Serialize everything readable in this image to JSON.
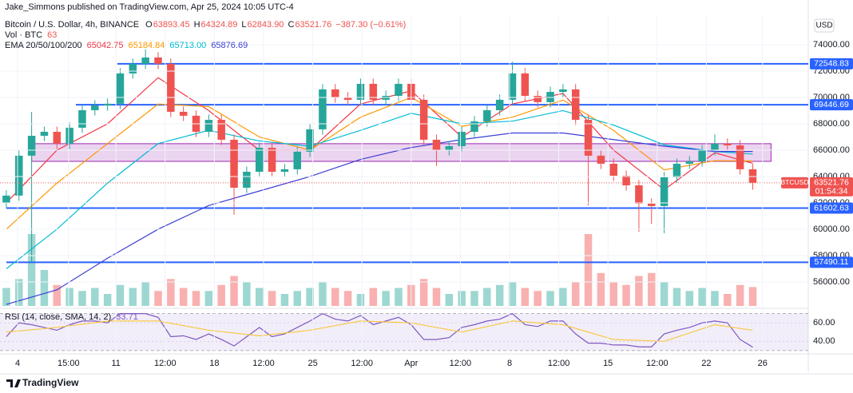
{
  "header": {
    "publisher": "Jake_Simmons published on TradingView.com, Apr 25, 2024 10:05 UTC-4"
  },
  "footer": {
    "brand": "TradingView"
  },
  "chart_data": [
    {
      "type": "candlestick",
      "title": "Bitcoin / U.S. Dollar, 4h, BINANCE",
      "currency": "USD",
      "up_color": "#26a69a",
      "down_color": "#ef5350",
      "ohlc_legend": {
        "keys": [
          "O",
          "H",
          "L",
          "C"
        ],
        "values": [
          63893.45,
          64324.89,
          {
            "value": 62843.9,
            "label": "62843.90"
          },
          63521.76
        ],
        "change": "−387.30 (−0.61%)"
      },
      "x": [
        -0.8,
        0.1,
        1.0,
        1.9,
        2.8,
        3.7,
        4.6,
        5.5,
        6.4,
        7.3,
        8.2,
        9.1,
        10.0,
        10.9,
        11.8,
        12.7,
        13.6,
        14.5,
        15.4,
        16.3,
        17.2,
        18.1,
        19.0,
        19.9,
        20.8,
        21.7,
        22.6,
        23.5,
        24.4,
        25.3,
        26.2,
        27.1,
        28.0,
        28.9,
        29.8,
        30.7,
        31.6,
        32.5,
        33.4,
        34.3,
        35.2,
        36.1,
        37.0,
        37.9,
        38.8,
        39.7,
        40.6,
        41.5,
        42.4,
        43.3,
        44.2,
        45.1,
        46.0,
        46.9,
        47.8,
        48.7,
        49.6,
        50.5,
        51.4,
        52.3
      ],
      "open": [
        62000,
        62550,
        65580,
        67090,
        67390,
        66490,
        67700,
        69030,
        69390,
        69520,
        71820,
        72550,
        73030,
        72550,
        68910,
        68610,
        67390,
        68300,
        66790,
        63150,
        64360,
        66180,
        64360,
        64550,
        65880,
        67580,
        70610,
        70000,
        69820,
        71030,
        69820,
        70120,
        71030,
        69820,
        66790,
        66000,
        66300,
        67390,
        68180,
        69030,
        69820,
        71820,
        70120,
        69640,
        70420,
        70610,
        68300,
        65580,
        64970,
        64060,
        63330,
        61940,
        61760,
        63940,
        64970,
        65150,
        66000,
        66490,
        66360,
        64550
      ],
      "high": [
        62950,
        65980,
        68900,
        67790,
        67790,
        68100,
        69430,
        69790,
        69920,
        72220,
        72950,
        73650,
        73430,
        72950,
        69310,
        69010,
        68700,
        68700,
        67190,
        64760,
        66580,
        66580,
        64950,
        66280,
        67980,
        71010,
        71010,
        70400,
        71430,
        71430,
        70520,
        71430,
        71430,
        70220,
        67190,
        66700,
        67790,
        68580,
        69430,
        70220,
        72700,
        72220,
        70520,
        70820,
        71010,
        71010,
        68700,
        65980,
        65370,
        64460,
        63730,
        62340,
        64340,
        65370,
        65550,
        66400,
        67200,
        66890,
        66760,
        64950
      ],
      "low": [
        61600,
        62150,
        57500,
        66690,
        66090,
        66090,
        67300,
        68630,
        68990,
        69120,
        71420,
        72150,
        72150,
        68510,
        68210,
        66990,
        66990,
        66390,
        61100,
        62750,
        63960,
        63960,
        63960,
        64150,
        65480,
        67180,
        69600,
        69420,
        69420,
        69420,
        69420,
        69720,
        69420,
        66390,
        64800,
        65600,
        65900,
        66990,
        67780,
        68630,
        69420,
        69720,
        69240,
        69240,
        70020,
        67900,
        61800,
        64570,
        63660,
        62930,
        59800,
        60400,
        59700,
        63540,
        64570,
        64750,
        65600,
        65960,
        64150,
        63000
      ],
      "close": [
        62550,
        65580,
        67090,
        67390,
        66490,
        67700,
        69030,
        69390,
        69520,
        71820,
        72550,
        73030,
        72550,
        68910,
        68610,
        67390,
        68300,
        66790,
        63150,
        64360,
        66180,
        64360,
        64550,
        65880,
        67580,
        70610,
        70000,
        69820,
        71030,
        69820,
        70120,
        71030,
        69820,
        66790,
        66000,
        66300,
        67390,
        68180,
        69030,
        69820,
        71820,
        70120,
        69640,
        70420,
        70610,
        68300,
        65580,
        64970,
        64060,
        63330,
        61940,
        61760,
        63940,
        64970,
        65150,
        66000,
        66490,
        66360,
        64550,
        63521.76
      ],
      "last_price": {
        "symbol": "BTCUSD",
        "countdown": "01:54:34"
      },
      "volume": {
        "name": "Vol · BTC",
        "ylim": [
          0,
          800
        ],
        "values": [
          60,
          90,
          240,
          120,
          70,
          60,
          50,
          60,
          40,
          70,
          60,
          80,
          50,
          90,
          60,
          50,
          50,
          70,
          100,
          80,
          60,
          50,
          40,
          50,
          60,
          80,
          60,
          50,
          40,
          60,
          50,
          60,
          70,
          90,
          60,
          40,
          50,
          50,
          60,
          70,
          80,
          60,
          50,
          50,
          60,
          80,
          240,
          110,
          80,
          70,
          100,
          110,
          80,
          60,
          50,
          60,
          50,
          40,
          70,
          63
        ]
      },
      "ema": {
        "name": "EMA 20/50/100/200",
        "x": [
          -0.8,
          2.8,
          6.4,
          10.0,
          13.6,
          17.2,
          20.8,
          24.4,
          28.0,
          31.6,
          35.2,
          38.8,
          42.4,
          46.0,
          49.6,
          52.3
        ],
        "series": [
          {
            "color": "#f23645",
            "last": 65042.75,
            "values": [
              62000,
              66000,
              68000,
              71500,
              69000,
              66000,
              66000,
              69500,
              70500,
              67000,
              69500,
              70300,
              66000,
              63000,
              65800,
              65000
            ]
          },
          {
            "color": "#ff9800",
            "last": 65184.84,
            "values": [
              60000,
              63500,
              66500,
              69500,
              69300,
              67000,
              66000,
              68500,
              70000,
              67800,
              68500,
              69800,
              67500,
              64500,
              65200,
              65180
            ]
          },
          {
            "color": "#00bcd4",
            "last": {
              "value": 65713,
              "label": "65713.00"
            },
            "values": [
              57000,
              60000,
              63500,
              66500,
              67500,
              66700,
              66300,
              67500,
              68800,
              68000,
              68200,
              69000,
              67900,
              66400,
              65900,
              65700
            ]
          },
          {
            "color": "#3d3dd6",
            "last": 65876.69,
            "values": [
              54300,
              55400,
              57800,
              60000,
              61800,
              62900,
              64000,
              65300,
              66200,
              66800,
              67300,
              67300,
              66800,
              66300,
              65900,
              65900
            ]
          }
        ]
      },
      "levels": [
        {
          "value": 72548.83,
          "from": 7.1,
          "color": "#2962ff"
        },
        {
          "value": 69446.69,
          "from": 4.15,
          "color": "#2962ff"
        },
        {
          "value": 61602.63,
          "from": -0.8,
          "color": "#2962ff"
        },
        {
          "value": 57490.11,
          "from": -0.8,
          "color": "#2962ff"
        }
      ],
      "zone": {
        "xlim": [
          1.0,
          53.6
        ],
        "ylim": [
          65150,
          66490
        ],
        "color": "#9c27b0"
      },
      "xlim": [
        -1.25,
        56.25
      ],
      "ylim": [
        54180,
        76180
      ],
      "xticks": [
        {
          "value": 0,
          "label": "4"
        },
        {
          "value": 3.625,
          "label": "15:00"
        },
        {
          "value": 7,
          "label": "11"
        },
        {
          "value": 10.5,
          "label": "12:00"
        },
        {
          "value": 14,
          "label": "18"
        },
        {
          "value": 17.5,
          "label": "12:00"
        },
        {
          "value": 21,
          "label": "25"
        },
        {
          "value": 24.5,
          "label": "12:00"
        },
        {
          "value": 28,
          "label": "Apr"
        },
        {
          "value": 31.5,
          "label": "12:00"
        },
        {
          "value": 35,
          "label": "8"
        },
        {
          "value": 38.5,
          "label": "12:00"
        },
        {
          "value": 42,
          "label": "15"
        },
        {
          "value": 45.5,
          "label": "12:00"
        },
        {
          "value": 49,
          "label": "22"
        },
        {
          "value": 53,
          "label": "26"
        }
      ],
      "yticks": [
        {
          "value": 56000,
          "label": "56000.00"
        },
        {
          "value": 58000,
          "label": "58000.00"
        },
        {
          "value": 60000,
          "label": "60000.00"
        },
        {
          "value": 62000,
          "label": "62000.00"
        },
        {
          "value": 64000,
          "label": "64000.00"
        },
        {
          "value": 66000,
          "label": "66000.00"
        },
        {
          "value": 68000,
          "label": "68000.00"
        },
        {
          "value": 70000,
          "label": "70000.00"
        },
        {
          "value": 72000,
          "label": "72000.00"
        },
        {
          "value": 74000,
          "label": "74000.00"
        }
      ],
      "grid": true
    },
    {
      "type": "line",
      "title": "RSI (14, close, SMA, 14, 2)",
      "x": [
        -0.8,
        0.1,
        1.0,
        1.9,
        2.8,
        3.7,
        4.6,
        5.5,
        6.4,
        7.3,
        8.2,
        9.1,
        10.0,
        10.9,
        11.8,
        12.7,
        13.6,
        14.5,
        15.4,
        16.3,
        17.2,
        18.1,
        19.0,
        19.9,
        20.8,
        21.7,
        22.6,
        23.5,
        24.4,
        25.3,
        26.2,
        27.1,
        28.0,
        28.9,
        29.8,
        30.7,
        31.6,
        32.5,
        33.4,
        34.3,
        35.2,
        36.1,
        37.0,
        37.9,
        38.8,
        39.7,
        40.6,
        41.5,
        42.4,
        43.3,
        44.2,
        45.1,
        46.0,
        46.9,
        47.8,
        48.7,
        49.6,
        50.5,
        51.4,
        52.3
      ],
      "series": [
        {
          "color": "#7e57c2",
          "values": [
            45,
            60,
            58,
            55,
            52,
            58,
            62,
            62,
            60,
            70,
            70,
            70,
            66,
            45,
            46,
            42,
            48,
            42,
            35,
            45,
            55,
            45,
            48,
            55,
            62,
            70,
            64,
            62,
            68,
            58,
            62,
            66,
            58,
            42,
            42,
            44,
            55,
            58,
            62,
            64,
            70,
            58,
            56,
            62,
            62,
            48,
            38,
            38,
            36,
            36,
            34,
            34,
            48,
            52,
            55,
            60,
            62,
            60,
            42,
            33.71
          ]
        },
        {
          "color": "#f7c948",
          "x": [
            -0.8,
            2.8,
            6.4,
            10.0,
            13.6,
            17.2,
            20.8,
            24.4,
            28.0,
            31.6,
            35.2,
            38.8,
            42.4,
            46.0,
            49.6,
            52.3
          ],
          "values": [
            50,
            55,
            62,
            62,
            52,
            46,
            52,
            62,
            60,
            50,
            62,
            58,
            42,
            40,
            58,
            52
          ]
        }
      ],
      "bands": [
        30,
        70
      ],
      "band_color": "#7e57c2",
      "xlim": [
        -1.25,
        56.25
      ],
      "ylim": [
        29,
        74
      ],
      "yticks": [
        {
          "value": 40,
          "label": "40.00"
        },
        {
          "value": 60,
          "label": "60.00"
        }
      ]
    }
  ]
}
